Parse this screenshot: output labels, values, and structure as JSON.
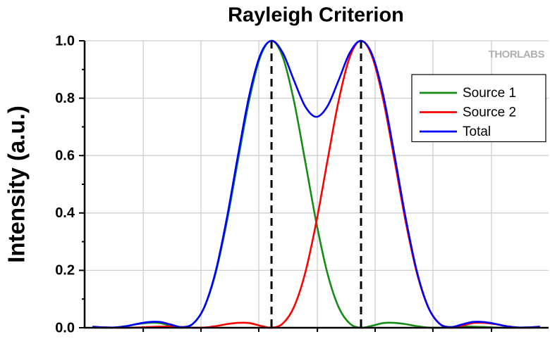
{
  "chart_data": {
    "type": "line",
    "title": "Rayleigh Criterion",
    "ylabel": "Intensity (a.u.)",
    "watermark": "THORLABS",
    "x": [
      -8,
      -7.5,
      -7,
      -6.5,
      -6,
      -5.5,
      -5,
      -4.5,
      -4,
      -3.5,
      -3,
      -2.5,
      -2,
      -1.5,
      -1,
      -0.5,
      0,
      0.5,
      1,
      1.5,
      2,
      2.5,
      3,
      3.5,
      4,
      4.5,
      5,
      5.5,
      6,
      6.5,
      7,
      7.5,
      8,
      8.5,
      9,
      9.5,
      10,
      10.5,
      11,
      11.5,
      12
    ],
    "series": [
      {
        "name": "Source 1",
        "color": "#168c16",
        "values": [
          0.0022,
          0.0002,
          0.0008,
          0.0054,
          0.0126,
          0.0171,
          0.0164,
          0.0071,
          0,
          0.0145,
          0.0716,
          0.1895,
          0.3675,
          0.5824,
          0.7913,
          0.944,
          1,
          0.944,
          0.7913,
          0.5824,
          0.3675,
          0.1895,
          0.0716,
          0.0145,
          0,
          0.0071,
          0.0164,
          0.0171,
          0.0126,
          0.0054,
          0.0008,
          0.0002,
          0.0022,
          0.0041,
          0.0039,
          0.0027,
          0.0009,
          0,
          0.0003,
          0.0011,
          0.0016
        ]
      },
      {
        "name": "Source 2",
        "color": "#ff0000",
        "values": [
          0.0016,
          0.0011,
          0.0003,
          0,
          0.0009,
          0.0027,
          0.0039,
          0.0041,
          0.0022,
          0.0002,
          0.0008,
          0.0054,
          0.0126,
          0.0171,
          0.0164,
          0.0071,
          0,
          0.0145,
          0.0716,
          0.1895,
          0.3675,
          0.5824,
          0.7913,
          0.944,
          1,
          0.944,
          0.7913,
          0.5824,
          0.3675,
          0.1895,
          0.0716,
          0.0145,
          0,
          0.0071,
          0.0164,
          0.0171,
          0.0126,
          0.0054,
          0.0008,
          0.0002,
          0.0022
        ]
      },
      {
        "name": "Total",
        "color": "#0000ff",
        "values": [
          0.0038,
          0.0013,
          0.0011,
          0.0054,
          0.0135,
          0.0198,
          0.0203,
          0.0112,
          0.0022,
          0.0147,
          0.0724,
          0.1949,
          0.3801,
          0.5995,
          0.8077,
          0.9511,
          1,
          0.9585,
          0.8629,
          0.7719,
          0.735,
          0.7719,
          0.8629,
          0.9585,
          1,
          0.9511,
          0.8077,
          0.5995,
          0.3801,
          0.1949,
          0.0724,
          0.0147,
          0.0022,
          0.0112,
          0.0203,
          0.0198,
          0.0135,
          0.0054,
          0.0011,
          0.0013,
          0.0038
        ]
      }
    ],
    "peak_lines": [
      0,
      4
    ],
    "xlim": [
      -8.35,
      12.38
    ],
    "xticks": [
      -5.73,
      -3.15,
      -0.57,
      2.05,
      4.63,
      7.21,
      9.83
    ],
    "ylim": [
      0,
      1
    ],
    "yticks": [
      {
        "value": 0,
        "label": "0.0"
      },
      0.2,
      0.4,
      0.6,
      0.8,
      {
        "value": 1,
        "label": "1.0"
      }
    ],
    "grid": true,
    "legend": "upper right"
  }
}
